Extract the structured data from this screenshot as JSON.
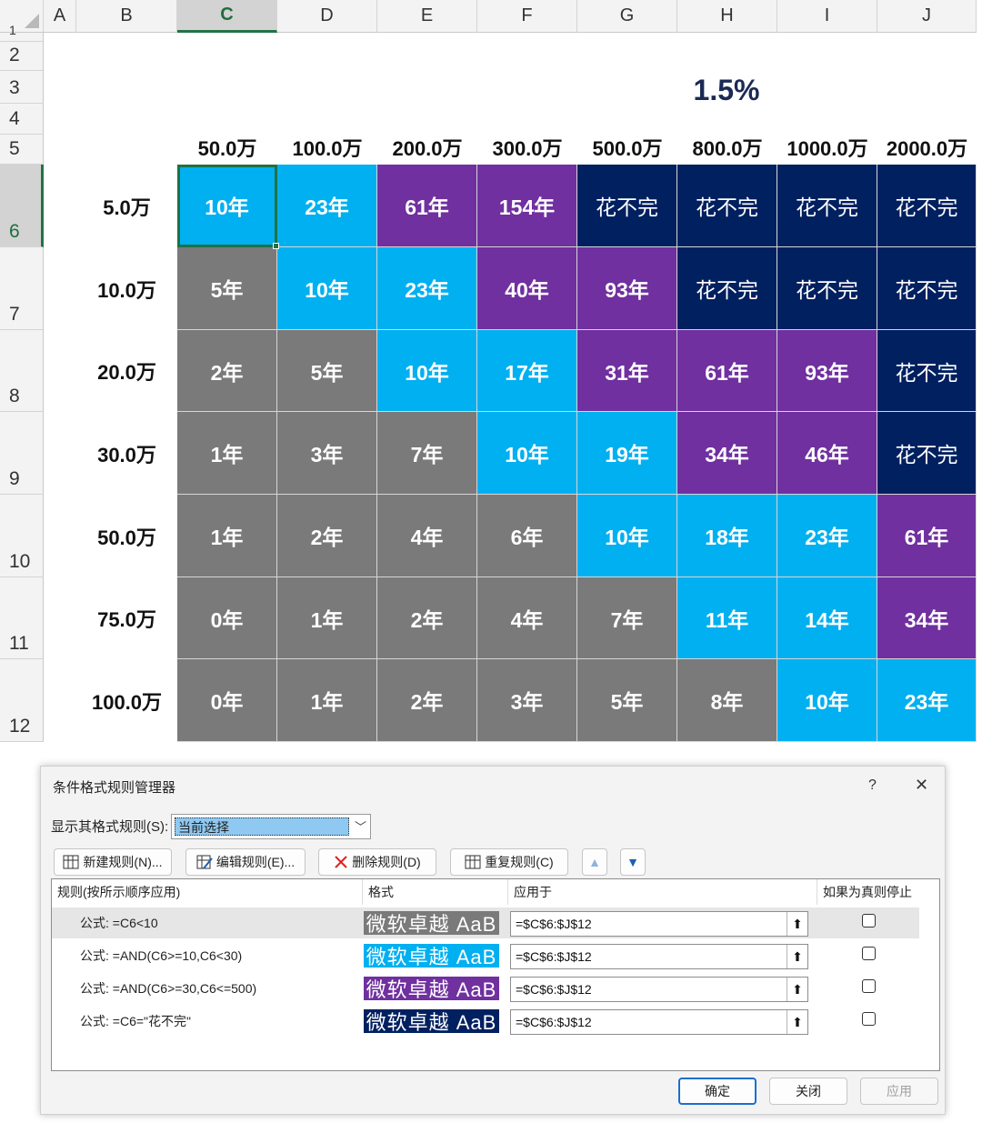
{
  "sheet": {
    "columns": [
      "A",
      "B",
      "C",
      "D",
      "E",
      "F",
      "G",
      "H",
      "I",
      "J"
    ],
    "selected_column": "C",
    "rows": [
      "1",
      "2",
      "3",
      "4",
      "5",
      "6",
      "7",
      "8",
      "9",
      "10",
      "11",
      "12"
    ],
    "selected_row": "6",
    "title": "1.5%",
    "header_values": [
      "50.0万",
      "100.0万",
      "200.0万",
      "300.0万",
      "500.0万",
      "800.0万",
      "1000.0万",
      "2000.0万"
    ],
    "row_labels": [
      "5.0万",
      "10.0万",
      "20.0万",
      "30.0万",
      "50.0万",
      "75.0万",
      "100.0万"
    ],
    "cells": [
      [
        "10年",
        "23年",
        "61年",
        "154年",
        "花不完",
        "花不完",
        "花不完",
        "花不完"
      ],
      [
        "5年",
        "10年",
        "23年",
        "40年",
        "93年",
        "花不完",
        "花不完",
        "花不完"
      ],
      [
        "2年",
        "5年",
        "10年",
        "17年",
        "31年",
        "61年",
        "93年",
        "花不完"
      ],
      [
        "1年",
        "3年",
        "7年",
        "10年",
        "19年",
        "34年",
        "46年",
        "花不完"
      ],
      [
        "1年",
        "2年",
        "4年",
        "6年",
        "10年",
        "18年",
        "23年",
        "61年"
      ],
      [
        "0年",
        "1年",
        "2年",
        "4年",
        "7年",
        "11年",
        "14年",
        "34年"
      ],
      [
        "0年",
        "1年",
        "2年",
        "3年",
        "5年",
        "8年",
        "10年",
        "23年"
      ]
    ],
    "cell_styles": [
      [
        "b",
        "b",
        "p",
        "p",
        "n",
        "n",
        "n",
        "n"
      ],
      [
        "g",
        "b",
        "b",
        "p",
        "p",
        "n",
        "n",
        "n"
      ],
      [
        "g",
        "g",
        "b",
        "b",
        "p",
        "p",
        "p",
        "n"
      ],
      [
        "g",
        "g",
        "g",
        "b",
        "b",
        "p",
        "p",
        "n"
      ],
      [
        "g",
        "g",
        "g",
        "g",
        "b",
        "b",
        "b",
        "p"
      ],
      [
        "g",
        "g",
        "g",
        "g",
        "g",
        "b",
        "b",
        "p"
      ],
      [
        "g",
        "g",
        "g",
        "g",
        "g",
        "g",
        "b",
        "b"
      ]
    ],
    "colors": {
      "g": "#7a7a7a",
      "b": "#00b0f0",
      "p": "#7030a0",
      "n": "#002060"
    }
  },
  "dialog": {
    "title": "条件格式规则管理器",
    "help": "?",
    "close": "✕",
    "show_rules_label": "显示其格式规则(S):",
    "show_rules_value": "当前选择",
    "toolbar": {
      "new_rule": "新建规则(N)...",
      "edit_rule": "编辑规则(E)...",
      "delete_rule": "删除规则(D)",
      "duplicate_rule": "重复规则(C)",
      "move_up": "▲",
      "move_down": "▼"
    },
    "columns": {
      "rule": "规则(按所示顺序应用)",
      "format": "格式",
      "applies_to": "应用于",
      "stop_if_true": "如果为真则停止"
    },
    "rules": [
      {
        "rule": "公式: =C6<10",
        "format_text": "微软卓越  AaB",
        "format_color": "#7a7a7a",
        "applies_to": "=$C$6:$J$12",
        "stop": false
      },
      {
        "rule": "公式: =AND(C6>=10,C6<30)",
        "format_text": "微软卓越  AaB",
        "format_color": "#00b0f0",
        "applies_to": "=$C$6:$J$12",
        "stop": false
      },
      {
        "rule": "公式: =AND(C6>=30,C6<=500)",
        "format_text": "微软卓越  AaB",
        "format_color": "#7030a0",
        "applies_to": "=$C$6:$J$12",
        "stop": false
      },
      {
        "rule": "公式: =C6=\"花不完\"",
        "format_text": "微软卓越  AaB",
        "format_color": "#002060",
        "applies_to": "=$C$6:$J$12",
        "stop": false
      }
    ],
    "buttons": {
      "ok": "确定",
      "close": "关闭",
      "apply": "应用"
    }
  }
}
